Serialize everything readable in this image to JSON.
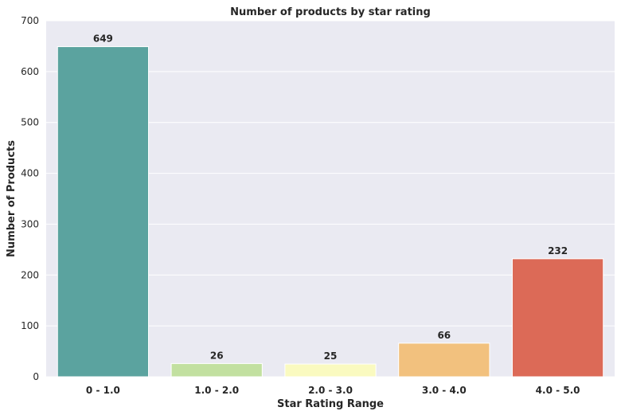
{
  "chart_data": {
    "type": "bar",
    "title": "Number of products by star rating",
    "xlabel": "Star Rating Range",
    "ylabel": "Number of Products",
    "categories": [
      "0 - 1.0",
      "1.0 - 2.0",
      "2.0 - 3.0",
      "3.0 - 4.0",
      "4.0 - 5.0"
    ],
    "values": [
      649,
      26,
      25,
      66,
      232
    ],
    "data_labels": [
      "649",
      "26",
      "25",
      "66",
      "232"
    ],
    "colors": [
      "#5ba39f",
      "#c2e0a0",
      "#fafac0",
      "#f2c17e",
      "#dc6a57"
    ],
    "ylim": [
      0,
      700
    ],
    "yticks": [
      0,
      100,
      200,
      300,
      400,
      500,
      600,
      700
    ],
    "ytick_labels": [
      "0",
      "100",
      "200",
      "300",
      "400",
      "500",
      "600",
      "700"
    ],
    "grid": true,
    "background": "#eaeaf2",
    "grid_color": "#ffffff"
  }
}
